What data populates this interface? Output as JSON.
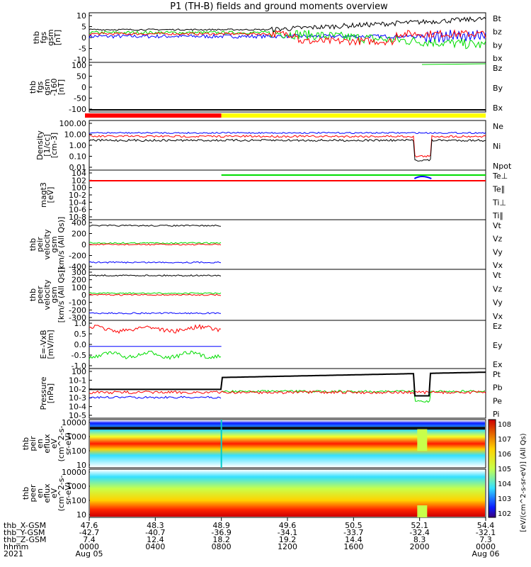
{
  "title": "P1 (TH-B) fields and ground moments overview",
  "colors": {
    "black": "#000000",
    "red": "#ff0000",
    "green": "#00dd00",
    "blue": "#0000ff",
    "yellow": "#ffff00"
  },
  "chart_data": [
    {
      "id": "p1",
      "type": "line",
      "ylabel": [
        "thb",
        "fgs",
        "gsm",
        "[nT]"
      ],
      "yticks": [
        "10",
        "5",
        "0",
        "-5",
        "-10"
      ],
      "ylim": [
        -10,
        10
      ],
      "series": [
        {
          "name": "Bt",
          "color": "black"
        },
        {
          "name": "bz",
          "color": "red"
        },
        {
          "name": "by",
          "color": "green"
        },
        {
          "name": "bx",
          "color": "blue"
        }
      ]
    },
    {
      "id": "p2",
      "type": "line",
      "ylabel": [
        "thb",
        "fgs",
        "gsm",
        "-160",
        "[nT]"
      ],
      "yticks": [
        "100",
        "50",
        "0",
        "-50",
        "-100"
      ],
      "ylim": [
        -130,
        130
      ],
      "series": [
        {
          "name": "Bz",
          "color": "red"
        },
        {
          "name": "By",
          "color": "green"
        },
        {
          "name": "Bx",
          "color": "blue"
        }
      ]
    },
    {
      "id": "p3",
      "type": "line",
      "ylabel": [
        "Density",
        "[1/cc]",
        "[cm-3]"
      ],
      "yticks": [
        "100.00",
        "10.00",
        "1.00",
        "0.10",
        "0.01"
      ],
      "log": true,
      "series": [
        {
          "name": "Ne",
          "color": "red"
        },
        {
          "name": "Ni",
          "color": "black"
        },
        {
          "name": "Npot",
          "color": "blue"
        }
      ]
    },
    {
      "id": "p4",
      "type": "line",
      "ylabel": [
        "magt3",
        "[eV]"
      ],
      "yticks": [
        "10^4",
        "10^2",
        "10^0",
        "10^-2",
        "10^-4",
        "10^-6",
        "10^-8"
      ],
      "log": true,
      "series": [
        {
          "name": "Te⊥",
          "color": "red"
        },
        {
          "name": "Te∥",
          "color": "black"
        },
        {
          "name": "Ti⊥",
          "color": "blue"
        },
        {
          "name": "Ti∥",
          "color": "green"
        }
      ]
    },
    {
      "id": "p5",
      "type": "line",
      "ylabel": [
        "thb",
        "peir",
        "velocity",
        "gsm",
        "[km/s (All Qs)]"
      ],
      "yticks": [
        "400",
        "200",
        "0",
        "-200",
        "-400"
      ],
      "ylim": [
        -400,
        400
      ],
      "series": [
        {
          "name": "Vt",
          "color": "black"
        },
        {
          "name": "Vz",
          "color": "red"
        },
        {
          "name": "Vy",
          "color": "green"
        },
        {
          "name": "Vx",
          "color": "blue"
        }
      ]
    },
    {
      "id": "p6",
      "type": "line",
      "ylabel": [
        "thb",
        "peer",
        "velocity",
        "gsm",
        "[km/s (All Qs)]"
      ],
      "yticks": [
        "300",
        "200",
        "100",
        "0",
        "-100",
        "-200",
        "-300"
      ],
      "ylim": [
        -300,
        300
      ],
      "series": [
        {
          "name": "Vt",
          "color": "black"
        },
        {
          "name": "Vz",
          "color": "red"
        },
        {
          "name": "Vy",
          "color": "green"
        },
        {
          "name": "Vx",
          "color": "blue"
        }
      ]
    },
    {
      "id": "p7",
      "type": "line",
      "ylabel": [
        "E=-VxB",
        "[mV/m]"
      ],
      "yticks": [
        "1.0",
        "0.5",
        "0.0",
        "-0.5",
        "-1.0"
      ],
      "ylim": [
        -1,
        1.3
      ],
      "series": [
        {
          "name": "Ez",
          "color": "red"
        },
        {
          "name": "Ey",
          "color": "green"
        },
        {
          "name": "Ex",
          "color": "blue"
        }
      ]
    },
    {
      "id": "p8",
      "type": "line",
      "ylabel": [
        "Pressure",
        "[nPa]"
      ],
      "yticks": [
        "10^0",
        "10^-1",
        "10^-2",
        "10^-3",
        "10^-4",
        "10^-5"
      ],
      "log": true,
      "series": [
        {
          "name": "Pt",
          "color": "black"
        },
        {
          "name": "Pb",
          "color": "red"
        },
        {
          "name": "Pe",
          "color": "green"
        },
        {
          "name": "Pi",
          "color": "blue"
        }
      ]
    },
    {
      "id": "p9",
      "type": "heatmap",
      "ylabel": [
        "thb",
        "peir",
        "en",
        "eflux",
        "eV",
        "(cm^2-s-",
        "sr-eV)"
      ],
      "yticks": [
        "10000",
        "1000",
        "100",
        "10"
      ],
      "log": true
    },
    {
      "id": "p10",
      "type": "heatmap",
      "ylabel": [
        "thb",
        "peer",
        "en",
        "eflux",
        "eV",
        "(cm^2-s-",
        "sr-eV)"
      ],
      "yticks": [
        "10000",
        "1000",
        "100",
        "10"
      ],
      "log": true
    }
  ],
  "colorbar": {
    "label": "[eV/(cm^2-s-sr-eV)] (All Qs)",
    "ticks": [
      "10^8",
      "10^7",
      "10^6",
      "10^5",
      "10^4",
      "10^3",
      "10^2"
    ]
  },
  "xaxis": {
    "row_labels": [
      "thb_X-GSM",
      "thb_Y-GSM",
      "thb_Z-GSM",
      "hhmm",
      "2021"
    ],
    "ticks": [
      {
        "x": "47.6",
        "y": "-42.7",
        "z": "7.4",
        "hhmm": "0000",
        "date": "Aug 05"
      },
      {
        "x": "48.3",
        "y": "-40.7",
        "z": "12.4",
        "hhmm": "0400",
        "date": ""
      },
      {
        "x": "48.9",
        "y": "-36.9",
        "z": "18.2",
        "hhmm": "0800",
        "date": ""
      },
      {
        "x": "49.6",
        "y": "-34.1",
        "z": "19.2",
        "hhmm": "1200",
        "date": ""
      },
      {
        "x": "50.5",
        "y": "-33.7",
        "z": "14.4",
        "hhmm": "1600",
        "date": ""
      },
      {
        "x": "52.1",
        "y": "-32.4",
        "z": "8.3",
        "hhmm": "2000",
        "date": ""
      },
      {
        "x": "54.4",
        "y": "-32.1",
        "z": "7.3",
        "hhmm": "0000",
        "date": "Aug 06"
      }
    ]
  }
}
